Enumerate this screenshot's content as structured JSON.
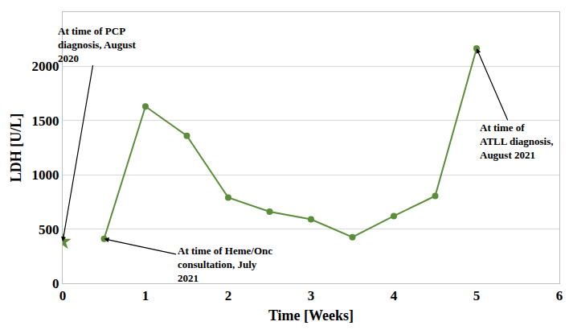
{
  "chart_data": {
    "type": "line",
    "x_label": "Time [Weeks]",
    "y_label": "LDH [U/L]",
    "series": [
      {
        "type": "scatter",
        "marker": "star",
        "color": "#5b8c3a",
        "x": [
          0
        ],
        "values": [
          385
        ]
      },
      {
        "type": "line",
        "marker": "circle",
        "color": "#5b8c3a",
        "line_style": "solid",
        "x": [
          0.5,
          1,
          1.5,
          2,
          2.5,
          3,
          3.5,
          4,
          4.5,
          5
        ],
        "values": [
          410,
          1630,
          1360,
          790,
          660,
          590,
          425,
          620,
          805,
          2165
        ]
      }
    ],
    "annotations": [
      {
        "text": "At time of PCP\ndiagnosis, August\n2020",
        "x": 0,
        "y": 385
      },
      {
        "text": "At time of Heme/Onc\nconsultation, July\n2021",
        "x": 0.5,
        "y": 410
      },
      {
        "text": "At time of\nATLL diagnosis,\nAugust 2021",
        "x": 5,
        "y": 2165
      }
    ],
    "xlim": [
      0,
      6
    ],
    "xticks": [
      0,
      1,
      2,
      3,
      4,
      5,
      6
    ],
    "ylim": [
      0,
      2500
    ],
    "yticks": [
      0,
      500,
      1000,
      1500,
      2000
    ],
    "grid": true
  }
}
